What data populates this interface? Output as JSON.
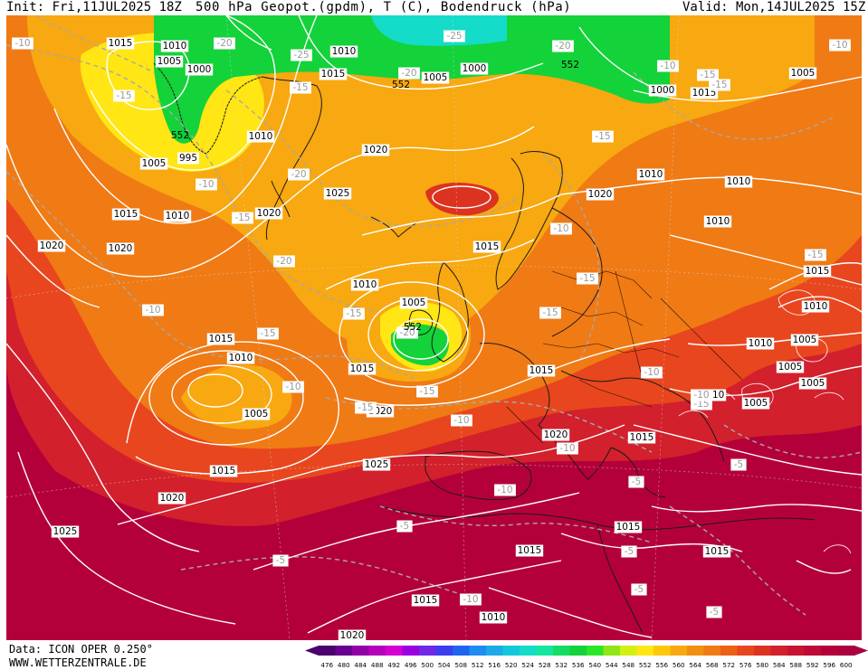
{
  "header": {
    "init": "Init: Fri,11JUL2025 18Z",
    "title": "500 hPa Geopot.(gpdm), T (C), Bodendruck (hPa)",
    "valid": "Valid: Mon,14JUL2025 15Z"
  },
  "footer": {
    "data": "Data: ICON OPER 0.250°",
    "website": "WWW.WETTERZENTRALE.DE"
  },
  "colors": {
    "background_dark_red": "#b4003a",
    "red": "#d2202c",
    "orange_red": "#e8461e",
    "orange": "#f07a14",
    "amber": "#f8a810",
    "yellow": "#ffe614",
    "green": "#14d23a",
    "isobar": "#ffffff",
    "isotherm": "#a8a8a8"
  },
  "colorbar": {
    "ticks": [
      "476",
      "480",
      "484",
      "488",
      "492",
      "496",
      "500",
      "504",
      "508",
      "512",
      "516",
      "520",
      "524",
      "528",
      "532",
      "536",
      "540",
      "544",
      "548",
      "552",
      "556",
      "560",
      "564",
      "568",
      "572",
      "576",
      "580",
      "584",
      "588",
      "592",
      "596",
      "600"
    ],
    "colors": [
      "#4b0070",
      "#6a0090",
      "#9200a8",
      "#b400b8",
      "#d200d2",
      "#9a00e0",
      "#6e28e6",
      "#3c3cf0",
      "#1e64f0",
      "#1e8cf0",
      "#1eaae6",
      "#14c8dc",
      "#14dcc8",
      "#14e6a0",
      "#14dc64",
      "#14d23a",
      "#2ae628",
      "#8ee614",
      "#d2f014",
      "#ffe614",
      "#ffc80a",
      "#f8a810",
      "#f09010",
      "#f07a14",
      "#ec6014",
      "#e8461e",
      "#dc3220",
      "#d2202c",
      "#c81432",
      "#be0a36",
      "#b4003a",
      "#aa0040"
    ]
  },
  "pressure_labels": [
    "1015",
    "1010",
    "1005",
    "1000",
    "995",
    "1010",
    "1005",
    "1010",
    "1015",
    "1020",
    "1005",
    "1000",
    "1015",
    "1005",
    "1010",
    "1000",
    "1020",
    "1025",
    "1010",
    "1005",
    "1020",
    "1015",
    "1010",
    "1020",
    "1015",
    "1005",
    "1010",
    "1015",
    "1020",
    "1015",
    "1005",
    "1020",
    "1010",
    "1015",
    "1025",
    "1015",
    "1020",
    "1025",
    "1020",
    "1015",
    "1010",
    "1015",
    "1010",
    "1005",
    "1005",
    "1010",
    "1005",
    "1015",
    "1015",
    "1010",
    "1015",
    "1015",
    "1010",
    "1020"
  ],
  "temperature_labels": [
    "-10",
    "-15",
    "-20",
    "-25",
    "-10",
    "-15",
    "-20",
    "-15",
    "-10",
    "-15",
    "-20",
    "-25",
    "-20",
    "-15",
    "-15",
    "-20",
    "-15",
    "-10",
    "-15",
    "-20",
    "-15",
    "-15",
    "-10",
    "-15",
    "-10",
    "-15",
    "-10",
    "-15",
    "-15",
    "-10",
    "-10",
    "-10",
    "-10",
    "-5",
    "-5",
    "-5",
    "-5",
    "-5",
    "-5",
    "-5",
    "-10",
    "-10"
  ],
  "height_labels": [
    "552",
    "552",
    "552",
    "552"
  ]
}
